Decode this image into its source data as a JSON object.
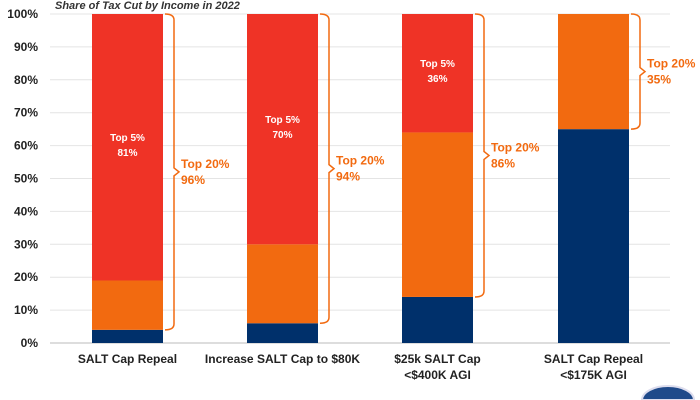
{
  "chart_data": {
    "type": "bar",
    "stacked": true,
    "title": "Share of Tax Cut by Income in 2022",
    "xlabel": "",
    "ylabel": "",
    "ylim": [
      0,
      100
    ],
    "y_ticks": [
      "0%",
      "10%",
      "20%",
      "30%",
      "40%",
      "50%",
      "60%",
      "70%",
      "80%",
      "90%",
      "100%"
    ],
    "grid": true,
    "categories": [
      [
        "SALT Cap Repeal"
      ],
      [
        "Increase SALT Cap to $80K"
      ],
      [
        "$25k SALT Cap",
        "<$400K AGI"
      ],
      [
        "SALT Cap Repeal",
        "<$175K AGI"
      ]
    ],
    "series": [
      {
        "color": "#00306b",
        "values": [
          4,
          6,
          14,
          65
        ]
      },
      {
        "color": "#f26a10",
        "values": [
          15,
          24,
          50,
          35
        ]
      },
      {
        "color": "#ef3326",
        "values": [
          81,
          70,
          36,
          0
        ]
      }
    ],
    "top5_labels": [
      [
        "Top 5%",
        "81%"
      ],
      [
        "Top 5%",
        "70%"
      ],
      [
        "Top 5%",
        "36%"
      ],
      null
    ],
    "top20_labels": [
      [
        "Top 20%",
        "96%"
      ],
      [
        "Top 20%",
        "94%"
      ],
      [
        "Top 20%",
        "86%"
      ],
      [
        "Top 20%",
        "35%"
      ]
    ],
    "top20_values": [
      96,
      94,
      86,
      35
    ],
    "label_color": "#f26a10"
  }
}
